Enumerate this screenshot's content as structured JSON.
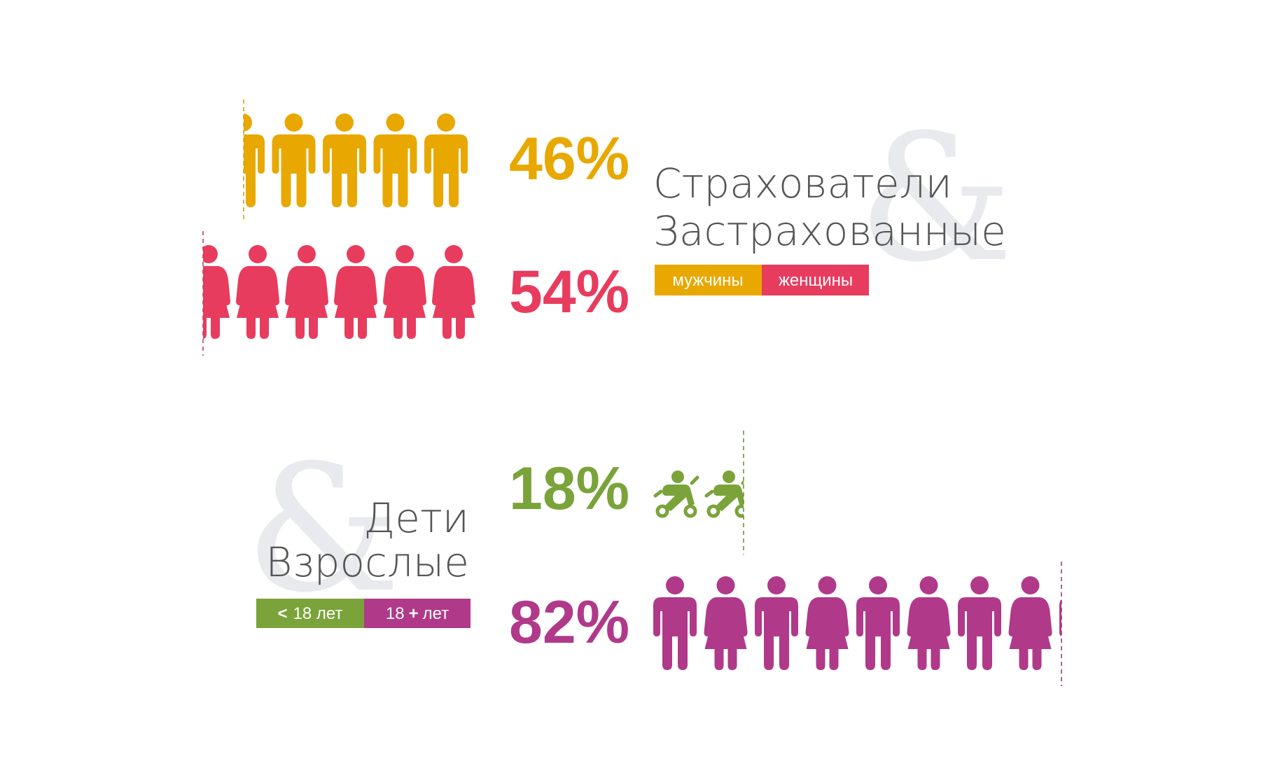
{
  "chart_data": [
    {
      "type": "pictogram",
      "title": "Страхователи",
      "title2": "Застрахованные",
      "series": [
        {
          "name": "мужчины",
          "value": 46,
          "label": "46%",
          "color": "#e8a800",
          "icon": "man-icon"
        },
        {
          "name": "женщины",
          "value": 54,
          "label": "54%",
          "color": "#e83c5e",
          "icon": "woman-icon"
        }
      ]
    },
    {
      "type": "pictogram",
      "title": "Дети",
      "title2": "Взрослые",
      "series": [
        {
          "name": "< 18 лет",
          "value": 18,
          "label": "18%",
          "color": "#7aa33a",
          "icon": "stroller-icon"
        },
        {
          "name": "18 + лет",
          "value": 82,
          "label": "82%",
          "color": "#b0398a",
          "icon": "man-woman-icon"
        }
      ]
    }
  ],
  "legend": {
    "men": "мужчины",
    "women": "женщины",
    "kids_sign": "<",
    "kids_text": "18 лет",
    "adults_num": "18",
    "adults_sign": "+",
    "adults_text": "лет"
  },
  "ampersand": "&"
}
